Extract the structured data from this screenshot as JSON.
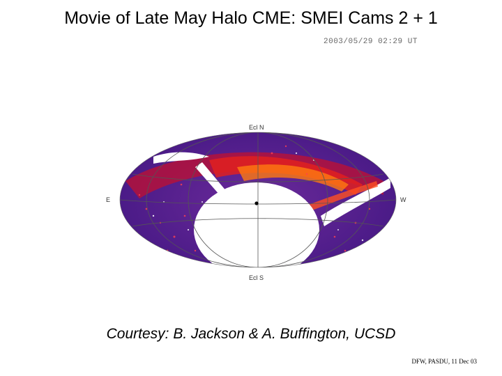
{
  "slide": {
    "title": "Movie of Late May Halo CME: SMEI Cams 2 + 1",
    "timestamp": "2003/05/29 02:29 UT",
    "courtesy": "Courtesy: B. Jackson & A. Buffington, UCSD",
    "footer": "DFW, PASDU, 11 Dec 03"
  },
  "skymap": {
    "label_north": "Ecl N",
    "label_south": "Ecl S",
    "label_east": "E",
    "label_west": "W",
    "colors": {
      "background": "#4a1a8a",
      "halo": "#e01020",
      "bright": "#ffffff",
      "grid": "#555555"
    }
  }
}
